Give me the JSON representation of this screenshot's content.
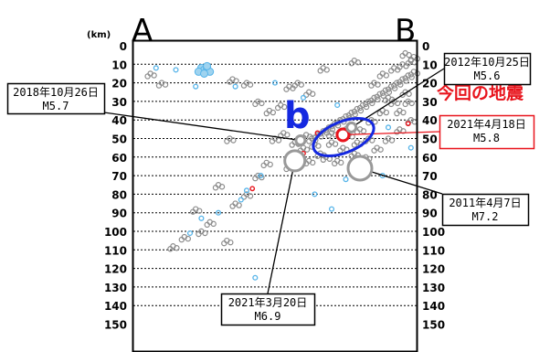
{
  "chart_data": {
    "type": "scatter",
    "yunit": "(km)",
    "ylim": [
      0,
      150
    ],
    "yticks": [
      0,
      10,
      20,
      30,
      40,
      50,
      60,
      70,
      80,
      90,
      100,
      110,
      120,
      130,
      140,
      150
    ],
    "xlim": [
      0,
      100
    ],
    "ends": {
      "left": "A",
      "right": "B"
    },
    "region_label": "b",
    "current_label": "今回の地震",
    "colors": {
      "major": "#999999",
      "recent": "#56b4e9",
      "current": "#e8141c",
      "region": "#1428e0",
      "grid": "#000000"
    },
    "background_events": [
      {
        "x": 63,
        "y": 50
      },
      {
        "x": 65,
        "y": 48
      },
      {
        "x": 67,
        "y": 46
      },
      {
        "x": 69,
        "y": 44
      },
      {
        "x": 71,
        "y": 42
      },
      {
        "x": 73,
        "y": 40
      },
      {
        "x": 75,
        "y": 38
      },
      {
        "x": 77,
        "y": 36
      },
      {
        "x": 79,
        "y": 34
      },
      {
        "x": 81,
        "y": 32
      },
      {
        "x": 83,
        "y": 30
      },
      {
        "x": 85,
        "y": 28
      },
      {
        "x": 87,
        "y": 26
      },
      {
        "x": 89,
        "y": 24
      },
      {
        "x": 91,
        "y": 22
      },
      {
        "x": 93,
        "y": 20
      },
      {
        "x": 95,
        "y": 18
      },
      {
        "x": 97,
        "y": 16
      },
      {
        "x": 99,
        "y": 14
      },
      {
        "x": 70,
        "y": 52
      },
      {
        "x": 74,
        "y": 55
      },
      {
        "x": 78,
        "y": 58
      },
      {
        "x": 82,
        "y": 60
      },
      {
        "x": 86,
        "y": 55
      },
      {
        "x": 90,
        "y": 50
      },
      {
        "x": 94,
        "y": 45
      },
      {
        "x": 98,
        "y": 40
      },
      {
        "x": 60,
        "y": 55
      },
      {
        "x": 58,
        "y": 60
      },
      {
        "x": 55,
        "y": 65
      },
      {
        "x": 62,
        "y": 62
      },
      {
        "x": 66,
        "y": 58
      },
      {
        "x": 68,
        "y": 60
      },
      {
        "x": 72,
        "y": 62
      },
      {
        "x": 76,
        "y": 48
      },
      {
        "x": 80,
        "y": 45
      },
      {
        "x": 84,
        "y": 40
      },
      {
        "x": 88,
        "y": 35
      },
      {
        "x": 92,
        "y": 30
      },
      {
        "x": 96,
        "y": 25
      },
      {
        "x": 85,
        "y": 20
      },
      {
        "x": 88,
        "y": 15
      },
      {
        "x": 92,
        "y": 12
      },
      {
        "x": 95,
        "y": 10
      },
      {
        "x": 98,
        "y": 8
      },
      {
        "x": 90,
        "y": 28
      },
      {
        "x": 94,
        "y": 35
      },
      {
        "x": 97,
        "y": 30
      },
      {
        "x": 83,
        "y": 50
      },
      {
        "x": 79,
        "y": 52
      },
      {
        "x": 75,
        "y": 45
      },
      {
        "x": 70,
        "y": 47
      },
      {
        "x": 64,
        "y": 53
      },
      {
        "x": 61,
        "y": 48
      },
      {
        "x": 57,
        "y": 52
      },
      {
        "x": 53,
        "y": 47
      },
      {
        "x": 50,
        "y": 50
      },
      {
        "x": 47,
        "y": 63
      },
      {
        "x": 44,
        "y": 70
      },
      {
        "x": 40,
        "y": 80
      },
      {
        "x": 36,
        "y": 85
      },
      {
        "x": 30,
        "y": 75
      },
      {
        "x": 27,
        "y": 95
      },
      {
        "x": 24,
        "y": 100
      },
      {
        "x": 14,
        "y": 108
      },
      {
        "x": 18,
        "y": 103
      },
      {
        "x": 22,
        "y": 88
      },
      {
        "x": 6,
        "y": 15
      },
      {
        "x": 10,
        "y": 20
      },
      {
        "x": 35,
        "y": 18
      },
      {
        "x": 40,
        "y": 20
      },
      {
        "x": 55,
        "y": 22
      },
      {
        "x": 58,
        "y": 20
      },
      {
        "x": 62,
        "y": 25
      },
      {
        "x": 48,
        "y": 35
      },
      {
        "x": 44,
        "y": 30
      },
      {
        "x": 52,
        "y": 32
      },
      {
        "x": 67,
        "y": 12
      },
      {
        "x": 78,
        "y": 8
      },
      {
        "x": 96,
        "y": 4
      },
      {
        "x": 99,
        "y": 6
      },
      {
        "x": 33,
        "y": 105
      },
      {
        "x": 34,
        "y": 50
      }
    ],
    "shallow_cluster": [
      {
        "x": 24,
        "y": 12
      },
      {
        "x": 25,
        "y": 13
      },
      {
        "x": 26,
        "y": 12
      },
      {
        "x": 27,
        "y": 14
      },
      {
        "x": 23,
        "y": 14
      },
      {
        "x": 25,
        "y": 15
      },
      {
        "x": 26,
        "y": 11
      }
    ],
    "recent_events": [
      {
        "x": 8,
        "y": 12
      },
      {
        "x": 15,
        "y": 13
      },
      {
        "x": 22,
        "y": 22
      },
      {
        "x": 36,
        "y": 22
      },
      {
        "x": 50,
        "y": 20
      },
      {
        "x": 60,
        "y": 28
      },
      {
        "x": 72,
        "y": 32
      },
      {
        "x": 90,
        "y": 44
      },
      {
        "x": 98,
        "y": 55
      },
      {
        "x": 88,
        "y": 70
      },
      {
        "x": 75,
        "y": 72
      },
      {
        "x": 64,
        "y": 80
      },
      {
        "x": 45,
        "y": 70
      },
      {
        "x": 40,
        "y": 78
      },
      {
        "x": 38,
        "y": 83
      },
      {
        "x": 24,
        "y": 93
      },
      {
        "x": 20,
        "y": 101
      },
      {
        "x": 43,
        "y": 125
      },
      {
        "x": 70,
        "y": 88
      },
      {
        "x": 30,
        "y": 90
      }
    ],
    "red_events": [
      {
        "x": 65,
        "y": 47
      },
      {
        "x": 60,
        "y": 58
      },
      {
        "x": 42,
        "y": 77
      },
      {
        "x": 97,
        "y": 42
      }
    ],
    "major_events": [
      {
        "date": "2021年4月18日",
        "mag": "M5.8",
        "x": 74,
        "y": 48,
        "current": true
      },
      {
        "date": "2012年10月25日",
        "mag": "M5.6",
        "x": 77,
        "y": 44
      },
      {
        "date": "2018年10月26日",
        "mag": "M5.7",
        "x": 59,
        "y": 51
      },
      {
        "date": "2011年4月7日",
        "mag": "M7.2",
        "x": 80,
        "y": 66
      },
      {
        "date": "2021年3月20日",
        "mag": "M6.9",
        "x": 57,
        "y": 62
      }
    ],
    "annotations": [
      {
        "date": "2012年10月25日",
        "mag": "M5.6",
        "event": 1
      },
      {
        "date": "2018年10月26日",
        "mag": "M5.7",
        "event": 2
      },
      {
        "date": "2021年4月18日",
        "mag": "M5.8",
        "event": 0
      },
      {
        "date": "2011年4月7日",
        "mag": "M7.2",
        "event": 3
      },
      {
        "date": "2021年3月20日",
        "mag": "M6.9",
        "event": 4
      }
    ]
  }
}
